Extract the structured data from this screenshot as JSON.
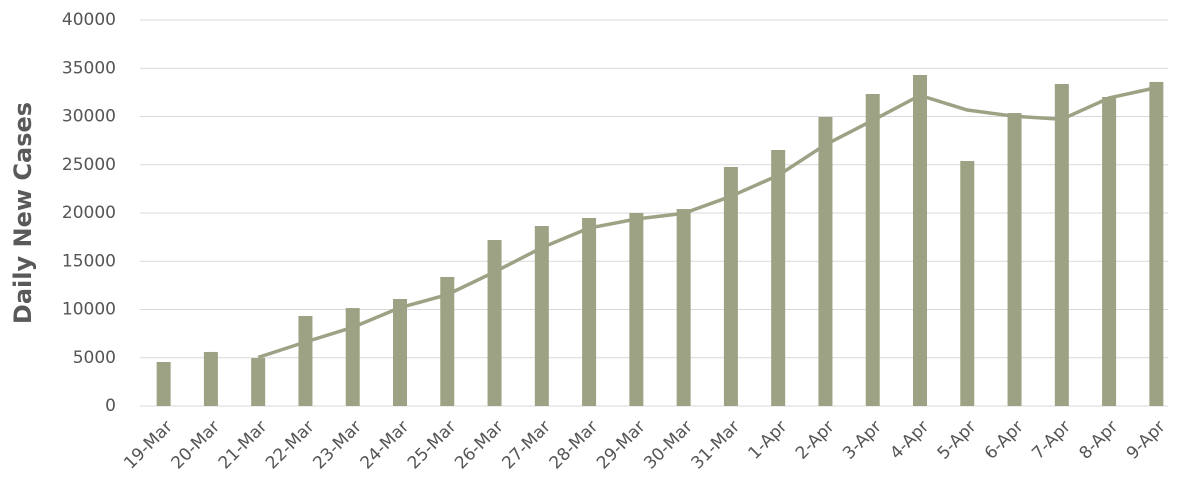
{
  "chart_data": {
    "type": "bar",
    "y_label": "Daily New Cases",
    "categories": [
      "19-Mar",
      "20-Mar",
      "21-Mar",
      "22-Mar",
      "23-Mar",
      "24-Mar",
      "25-Mar",
      "26-Mar",
      "27-Mar",
      "28-Mar",
      "29-Mar",
      "30-Mar",
      "31-Mar",
      "1-Apr",
      "2-Apr",
      "3-Apr",
      "4-Apr",
      "5-Apr",
      "6-Apr",
      "7-Apr",
      "8-Apr",
      "9-Apr"
    ],
    "series": [
      {
        "type": "bar",
        "color": "#9ca283",
        "values": [
          4560,
          5600,
          4970,
          9330,
          10150,
          11090,
          13370,
          17200,
          18650,
          19480,
          20000,
          20410,
          24770,
          26530,
          29950,
          32330,
          34300,
          25390,
          30360,
          33370,
          32020,
          33580
        ]
      },
      {
        "type": "line",
        "color": "#9ca283",
        "values": [
          null,
          null,
          5040,
          6630,
          8150,
          10190,
          11540,
          13890,
          16410,
          18440,
          19380,
          19960,
          21730,
          23900,
          27080,
          29600,
          32190,
          30670,
          30020,
          29710,
          31920,
          32990
        ]
      }
    ],
    "ylim": [
      0,
      40000
    ],
    "yticks": [
      0,
      5000,
      10000,
      15000,
      20000,
      25000,
      30000,
      35000,
      40000
    ],
    "grid": true
  }
}
